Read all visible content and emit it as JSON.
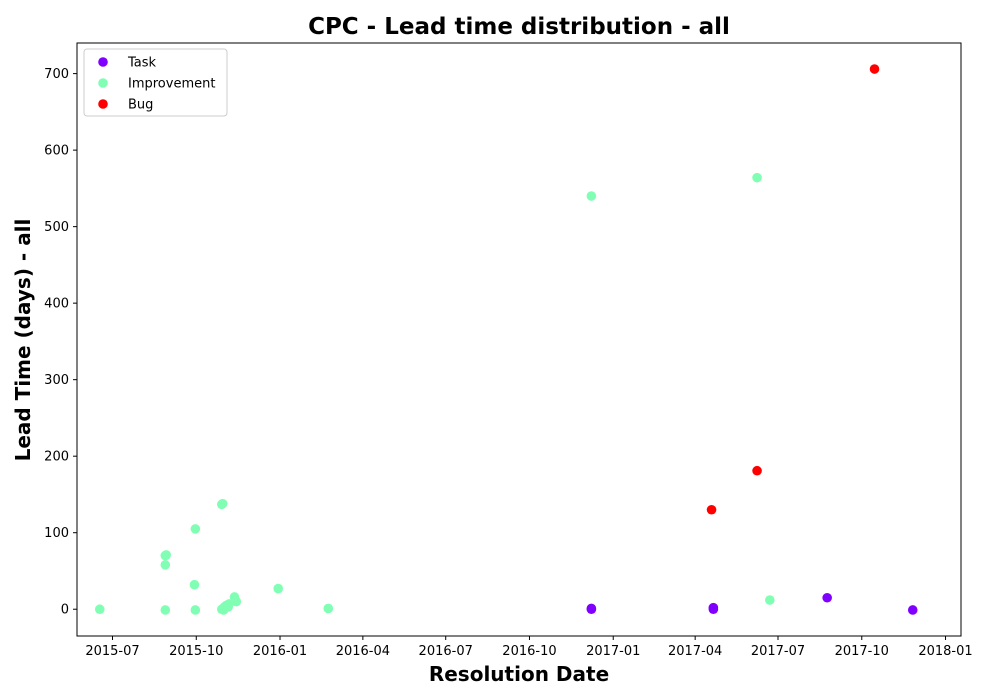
{
  "chart_data": {
    "type": "scatter",
    "title": "CPC - Lead time distribution - all",
    "xlabel": "Resolution Date",
    "ylabel": "Lead Time (days) - all",
    "xlim": [
      "2015-05-23",
      "2018-01-18"
    ],
    "ylim": [
      -35,
      740
    ],
    "xticks": [
      "2015-07",
      "2015-10",
      "2016-01",
      "2016-04",
      "2016-07",
      "2016-10",
      "2017-01",
      "2017-04",
      "2017-07",
      "2017-10",
      "2018-01"
    ],
    "yticks": [
      0,
      100,
      200,
      300,
      400,
      500,
      600,
      700
    ],
    "grid": false,
    "legend_position": "top-left",
    "series": [
      {
        "name": "Task",
        "color": "#8000ff",
        "points": [
          {
            "x": "2016-12-08",
            "y": 0
          },
          {
            "x": "2016-12-08",
            "y": 1
          },
          {
            "x": "2017-04-21",
            "y": 2
          },
          {
            "x": "2017-04-21",
            "y": 0
          },
          {
            "x": "2017-08-24",
            "y": 15
          },
          {
            "x": "2017-11-26",
            "y": -1
          }
        ]
      },
      {
        "name": "Improvement",
        "color": "#80ffb4",
        "points": [
          {
            "x": "2015-06-17",
            "y": 0
          },
          {
            "x": "2015-08-28",
            "y": 70
          },
          {
            "x": "2015-08-29",
            "y": 71
          },
          {
            "x": "2015-08-28",
            "y": 58
          },
          {
            "x": "2015-08-28",
            "y": -1
          },
          {
            "x": "2015-09-29",
            "y": 32
          },
          {
            "x": "2015-09-30",
            "y": 105
          },
          {
            "x": "2015-09-30",
            "y": -1
          },
          {
            "x": "2015-10-29",
            "y": 137
          },
          {
            "x": "2015-10-30",
            "y": 138
          },
          {
            "x": "2015-10-29",
            "y": 0
          },
          {
            "x": "2015-10-31",
            "y": -1
          },
          {
            "x": "2015-11-01",
            "y": 3
          },
          {
            "x": "2015-11-03",
            "y": 5
          },
          {
            "x": "2015-11-05",
            "y": 3
          },
          {
            "x": "2015-11-06",
            "y": 7
          },
          {
            "x": "2015-11-12",
            "y": 16
          },
          {
            "x": "2015-11-14",
            "y": 10
          },
          {
            "x": "2015-12-30",
            "y": 27
          },
          {
            "x": "2016-02-23",
            "y": 1
          },
          {
            "x": "2016-12-08",
            "y": 540
          },
          {
            "x": "2017-06-08",
            "y": 564
          },
          {
            "x": "2017-06-22",
            "y": 12
          }
        ]
      },
      {
        "name": "Bug",
        "color": "#ff0000",
        "points": [
          {
            "x": "2017-04-19",
            "y": 130
          },
          {
            "x": "2017-06-08",
            "y": 181
          },
          {
            "x": "2017-10-15",
            "y": 706
          }
        ]
      }
    ]
  }
}
